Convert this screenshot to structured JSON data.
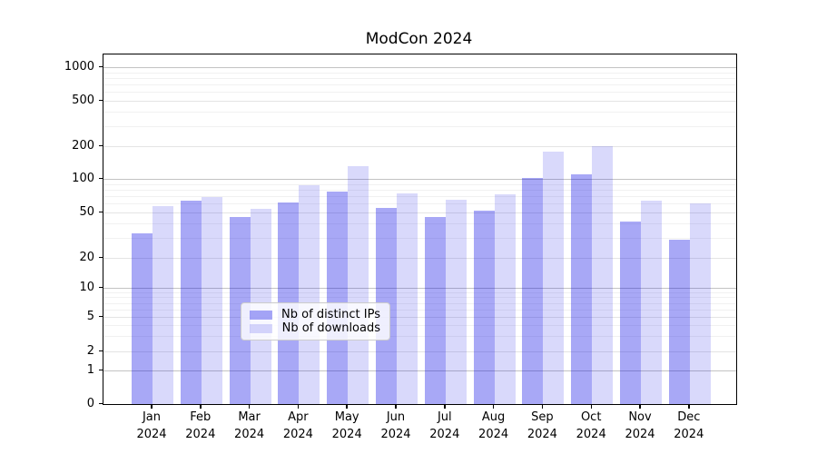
{
  "chart_data": {
    "type": "bar",
    "title": "ModCon 2024",
    "year": "2024",
    "months": [
      "Jan",
      "Feb",
      "Mar",
      "Apr",
      "May",
      "Jun",
      "Jul",
      "Aug",
      "Sep",
      "Oct",
      "Nov",
      "Dec"
    ],
    "series": [
      {
        "name": "Nb of distinct IPs",
        "color": "rgba(0,0,230,0.34)",
        "values": [
          33,
          64,
          46,
          61,
          77,
          55,
          46,
          52,
          102,
          110,
          42,
          29
        ]
      },
      {
        "name": "Nb of downloads",
        "color": "rgba(0,0,230,0.15)",
        "values": [
          57,
          69,
          54,
          88,
          130,
          74,
          65,
          73,
          180,
          200,
          64,
          60
        ]
      }
    ],
    "yscale": "symlog",
    "ylim": [
      0,
      1000
    ],
    "yticks": [
      0,
      1,
      2,
      5,
      10,
      20,
      50,
      100,
      200,
      500,
      1000
    ],
    "minor_gridlines": [
      3,
      4,
      6,
      7,
      8,
      9,
      30,
      40,
      60,
      70,
      80,
      90,
      300,
      400,
      600,
      700,
      800,
      900
    ],
    "grid": true,
    "legend_position": "lower-center"
  },
  "legend": {
    "items": [
      "Nb of distinct IPs",
      "Nb of downloads"
    ]
  },
  "colors": {
    "bar_ips": "rgba(0,0,230,0.34)",
    "bar_downloads": "rgba(0,0,230,0.15)",
    "grid_decade": "#c3c3c3",
    "grid_labeled": "#e4e4e4",
    "grid_minor": "#f1f1f1",
    "spine": "#000000",
    "background": "#ffffff"
  }
}
